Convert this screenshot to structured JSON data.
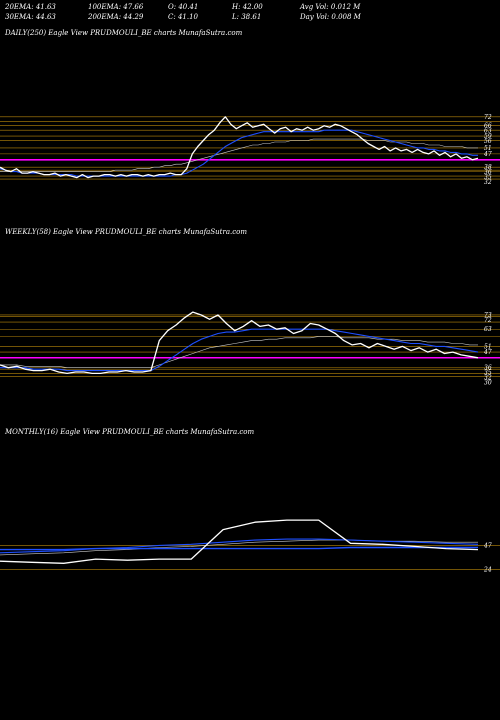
{
  "header": {
    "ema20": "20EMA: 41.63",
    "ema100": "100EMA: 47.66",
    "open": "O: 40.41",
    "high": "H: 42.00",
    "avgvol": "Avg Vol: 0.012  M",
    "ema30": "30EMA: 44.63",
    "ema200": "200EMA: 44.29",
    "close": "C: 41.10",
    "low": "L: 38.61",
    "dayvol": "Day Vol: 0.008  M"
  },
  "colors": {
    "background": "#000000",
    "price": "#ffffff",
    "ema_fast": "#1e4fff",
    "ema_slow": "#cccccc",
    "levels": "#b8860b",
    "support": "#ff00ff"
  },
  "chart_data": [
    {
      "type": "line",
      "label": "DAILY(250) Eagle  View  PRUDMOULI_BE charts MunafaSutra.com",
      "y_ticks": [
        "72",
        "66",
        "63",
        "59",
        "56",
        "51",
        "47",
        "38",
        "36",
        "35",
        "32"
      ],
      "ylim": [
        28,
        80
      ],
      "levels": [
        72,
        69,
        66,
        63,
        59,
        56,
        51,
        47,
        43,
        38,
        36,
        35,
        32,
        30
      ],
      "support": [
        43
      ],
      "series": [
        {
          "role": "price",
          "values": [
            38,
            36,
            35,
            37,
            34,
            34,
            35,
            34,
            33,
            33,
            34,
            32,
            33,
            32,
            31,
            33,
            31,
            32,
            32,
            33,
            33,
            32,
            33,
            32,
            33,
            33,
            32,
            33,
            32,
            33,
            33,
            34,
            33,
            33,
            37,
            47,
            52,
            56,
            60,
            63,
            68,
            72,
            67,
            64,
            66,
            68,
            65,
            66,
            67,
            64,
            61,
            64,
            65,
            62,
            64,
            63,
            65,
            63,
            64,
            66,
            65,
            67,
            66,
            64,
            62,
            60,
            57,
            54,
            52,
            50,
            52,
            49,
            51,
            49,
            50,
            48,
            50,
            48,
            47,
            49,
            46,
            48,
            45,
            47,
            44,
            45,
            43,
            44
          ]
        },
        {
          "role": "ema-fast",
          "values": [
            37,
            36,
            35,
            35,
            34,
            34,
            34,
            34,
            33,
            33,
            33,
            33,
            33,
            33,
            32,
            32,
            32,
            32,
            32,
            32,
            32,
            32,
            32,
            32,
            32,
            32,
            32,
            32,
            32,
            32,
            32,
            32,
            33,
            33,
            34,
            36,
            38,
            40,
            43,
            46,
            49,
            52,
            54,
            56,
            58,
            59,
            60,
            61,
            62,
            62,
            62,
            62,
            62,
            62,
            62,
            62,
            62,
            62,
            62,
            63,
            63,
            63,
            63,
            63,
            63,
            62,
            61,
            60,
            59,
            58,
            57,
            56,
            55,
            54,
            53,
            52,
            51,
            51,
            50,
            50,
            49,
            49,
            48,
            48,
            47,
            47,
            46,
            46
          ]
        },
        {
          "role": "ema-slow",
          "values": [
            35,
            35,
            35,
            35,
            35,
            35,
            35,
            35,
            35,
            35,
            35,
            35,
            35,
            35,
            35,
            35,
            35,
            35,
            35,
            35,
            35,
            36,
            36,
            36,
            36,
            37,
            37,
            37,
            38,
            38,
            39,
            39,
            40,
            40,
            41,
            42,
            43,
            44,
            45,
            46,
            47,
            48,
            49,
            50,
            51,
            52,
            53,
            53,
            54,
            54,
            55,
            55,
            55,
            56,
            56,
            56,
            56,
            57,
            57,
            57,
            57,
            57,
            57,
            57,
            57,
            57,
            57,
            56,
            56,
            56,
            56,
            55,
            55,
            55,
            55,
            54,
            54,
            54,
            53,
            53,
            53,
            52,
            52,
            52,
            52,
            51,
            51,
            51
          ]
        }
      ]
    },
    {
      "type": "line",
      "label": "WEEKLY(58) Eagle  View  PRUDMOULI_BE charts MunafaSutra.com",
      "y_ticks": [
        "73",
        "72",
        "63",
        "51",
        "47",
        "36",
        "35",
        "32",
        "30"
      ],
      "ylim": [
        26,
        80
      ],
      "levels": [
        73,
        72,
        68,
        63,
        58,
        51,
        47,
        43,
        36,
        35,
        32,
        30
      ],
      "support": [
        43
      ],
      "series": [
        {
          "role": "price",
          "values": [
            38,
            36,
            37,
            35,
            34,
            34,
            35,
            33,
            32,
            33,
            33,
            32,
            32,
            33,
            33,
            34,
            33,
            33,
            34,
            55,
            62,
            66,
            71,
            75,
            73,
            70,
            73,
            67,
            62,
            65,
            69,
            65,
            66,
            63,
            64,
            60,
            62,
            67,
            66,
            63,
            60,
            55,
            52,
            53,
            50,
            53,
            51,
            49,
            51,
            48,
            50,
            47,
            49,
            46,
            47,
            45,
            44,
            43
          ]
        },
        {
          "role": "ema-fast",
          "values": [
            36,
            36,
            36,
            36,
            35,
            35,
            35,
            35,
            34,
            34,
            34,
            34,
            34,
            34,
            34,
            34,
            34,
            34,
            34,
            37,
            41,
            45,
            49,
            53,
            56,
            58,
            60,
            61,
            61,
            62,
            63,
            63,
            63,
            63,
            63,
            63,
            63,
            63,
            63,
            63,
            62,
            61,
            60,
            59,
            58,
            57,
            56,
            55,
            54,
            53,
            53,
            52,
            51,
            51,
            50,
            49,
            48,
            47
          ]
        },
        {
          "role": "ema-slow",
          "values": [
            38,
            38,
            38,
            37,
            37,
            37,
            37,
            37,
            36,
            36,
            36,
            36,
            36,
            36,
            36,
            36,
            36,
            36,
            36,
            38,
            40,
            42,
            44,
            46,
            48,
            50,
            51,
            52,
            53,
            54,
            55,
            55,
            56,
            56,
            57,
            57,
            57,
            57,
            58,
            58,
            58,
            57,
            57,
            57,
            57,
            56,
            56,
            56,
            55,
            55,
            55,
            54,
            54,
            54,
            53,
            53,
            52,
            52
          ]
        }
      ]
    },
    {
      "type": "line",
      "label": "MONTHLY(16) Eagle  View  PRUDMOULI_BE charts MunafaSutra.com",
      "y_ticks": [
        "47",
        "24"
      ],
      "ylim": [
        0,
        90
      ],
      "levels": [
        47,
        24
      ],
      "support": [],
      "series": [
        {
          "role": "price",
          "values": [
            32,
            31,
            30,
            34,
            33,
            34,
            34,
            62,
            69,
            71,
            71,
            49,
            48,
            46,
            44,
            43
          ]
        },
        {
          "role": "ema-fast",
          "values": [
            40,
            41,
            42,
            44,
            45,
            47,
            48,
            50,
            52,
            53,
            53,
            52,
            51,
            50,
            49,
            48
          ]
        },
        {
          "role": "ema-slow",
          "values": [
            38,
            39,
            40,
            42,
            43,
            45,
            46,
            48,
            50,
            51,
            52,
            52,
            51,
            51,
            50,
            50
          ]
        },
        {
          "role": "trend",
          "values": [
            43,
            43,
            43,
            44,
            44,
            44,
            44,
            44,
            44,
            44,
            44,
            45,
            45,
            45,
            45,
            45
          ]
        }
      ]
    }
  ]
}
